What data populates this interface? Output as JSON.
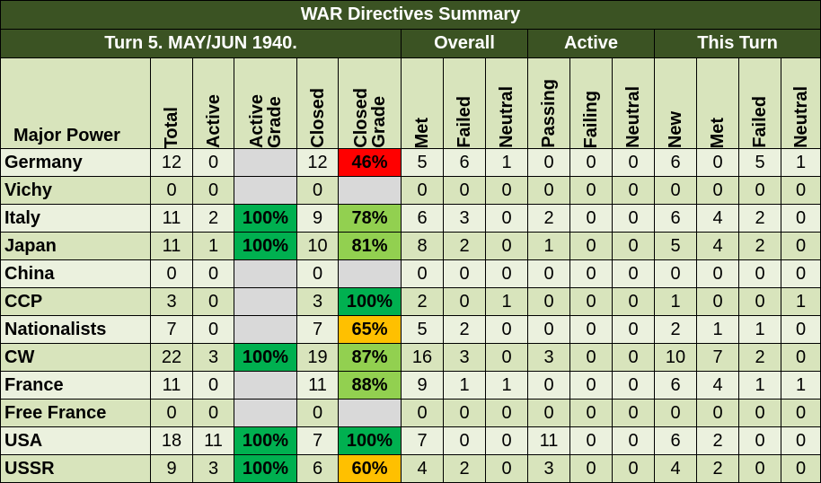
{
  "title": "WAR Directives Summary",
  "turn_label": "Turn 5.  MAY/JUN 1940.",
  "groups": {
    "overall": "Overall",
    "active": "Active",
    "this_turn": "This Turn"
  },
  "columns": {
    "major_power": "Major Power",
    "total": "Total",
    "active": "Active",
    "active_grade": "Active\nGrade",
    "closed": "Closed",
    "closed_grade": "Closed\nGrade",
    "met": "Met",
    "failed": "Failed",
    "neutral": "Neutral",
    "passing": "Passing",
    "failing": "Failing",
    "active_neutral": "Neutral",
    "new": "New",
    "turn_met": "Met",
    "turn_failed": "Failed",
    "turn_neutral": "Neutral"
  },
  "colors": {
    "header_green": "#3b5323",
    "red": "#ff0000",
    "green": "#00b050",
    "light_green": "#92d050",
    "orange": "#ffc000",
    "grey": "#d9d9d9"
  },
  "rows": [
    {
      "name": "Germany",
      "total": "12",
      "active": "0",
      "active_grade": "",
      "ag_color": "grey",
      "closed": "12",
      "closed_grade": "46%",
      "cg_color": "red",
      "met": "5",
      "failed": "6",
      "neutral": "1",
      "passing": "0",
      "failing": "0",
      "a_neutral": "0",
      "new": "6",
      "t_met": "0",
      "t_failed": "5",
      "t_neutral": "1"
    },
    {
      "name": "Vichy",
      "total": "0",
      "active": "0",
      "active_grade": "",
      "ag_color": "grey",
      "closed": "0",
      "closed_grade": "",
      "cg_color": "grey",
      "met": "0",
      "failed": "0",
      "neutral": "0",
      "passing": "0",
      "failing": "0",
      "a_neutral": "0",
      "new": "0",
      "t_met": "0",
      "t_failed": "0",
      "t_neutral": "0"
    },
    {
      "name": "Italy",
      "total": "11",
      "active": "2",
      "active_grade": "100%",
      "ag_color": "green",
      "closed": "9",
      "closed_grade": "78%",
      "cg_color": "lgreen",
      "met": "6",
      "failed": "3",
      "neutral": "0",
      "passing": "2",
      "failing": "0",
      "a_neutral": "0",
      "new": "6",
      "t_met": "4",
      "t_failed": "2",
      "t_neutral": "0"
    },
    {
      "name": "Japan",
      "total": "11",
      "active": "1",
      "active_grade": "100%",
      "ag_color": "green",
      "closed": "10",
      "closed_grade": "81%",
      "cg_color": "lgreen",
      "met": "8",
      "failed": "2",
      "neutral": "0",
      "passing": "1",
      "failing": "0",
      "a_neutral": "0",
      "new": "5",
      "t_met": "4",
      "t_failed": "2",
      "t_neutral": "0"
    },
    {
      "name": "China",
      "total": "0",
      "active": "0",
      "active_grade": "",
      "ag_color": "grey",
      "closed": "0",
      "closed_grade": "",
      "cg_color": "grey",
      "met": "0",
      "failed": "0",
      "neutral": "0",
      "passing": "0",
      "failing": "0",
      "a_neutral": "0",
      "new": "0",
      "t_met": "0",
      "t_failed": "0",
      "t_neutral": "0"
    },
    {
      "name": "CCP",
      "total": "3",
      "active": "0",
      "active_grade": "",
      "ag_color": "grey",
      "closed": "3",
      "closed_grade": "100%",
      "cg_color": "green",
      "met": "2",
      "failed": "0",
      "neutral": "1",
      "passing": "0",
      "failing": "0",
      "a_neutral": "0",
      "new": "1",
      "t_met": "0",
      "t_failed": "0",
      "t_neutral": "1"
    },
    {
      "name": "Nationalists",
      "total": "7",
      "active": "0",
      "active_grade": "",
      "ag_color": "grey",
      "closed": "7",
      "closed_grade": "65%",
      "cg_color": "orange",
      "met": "5",
      "failed": "2",
      "neutral": "0",
      "passing": "0",
      "failing": "0",
      "a_neutral": "0",
      "new": "2",
      "t_met": "1",
      "t_failed": "1",
      "t_neutral": "0"
    },
    {
      "name": "CW",
      "total": "22",
      "active": "3",
      "active_grade": "100%",
      "ag_color": "green",
      "closed": "19",
      "closed_grade": "87%",
      "cg_color": "lgreen",
      "met": "16",
      "failed": "3",
      "neutral": "0",
      "passing": "3",
      "failing": "0",
      "a_neutral": "0",
      "new": "10",
      "t_met": "7",
      "t_failed": "2",
      "t_neutral": "0"
    },
    {
      "name": "France",
      "total": "11",
      "active": "0",
      "active_grade": "",
      "ag_color": "grey",
      "closed": "11",
      "closed_grade": "88%",
      "cg_color": "lgreen",
      "met": "9",
      "failed": "1",
      "neutral": "1",
      "passing": "0",
      "failing": "0",
      "a_neutral": "0",
      "new": "6",
      "t_met": "4",
      "t_failed": "1",
      "t_neutral": "1"
    },
    {
      "name": "Free France",
      "total": "0",
      "active": "0",
      "active_grade": "",
      "ag_color": "grey",
      "closed": "0",
      "closed_grade": "",
      "cg_color": "grey",
      "met": "0",
      "failed": "0",
      "neutral": "0",
      "passing": "0",
      "failing": "0",
      "a_neutral": "0",
      "new": "0",
      "t_met": "0",
      "t_failed": "0",
      "t_neutral": "0"
    },
    {
      "name": "USA",
      "total": "18",
      "active": "11",
      "active_grade": "100%",
      "ag_color": "green",
      "closed": "7",
      "closed_grade": "100%",
      "cg_color": "green",
      "met": "7",
      "failed": "0",
      "neutral": "0",
      "passing": "11",
      "failing": "0",
      "a_neutral": "0",
      "new": "6",
      "t_met": "2",
      "t_failed": "0",
      "t_neutral": "0"
    },
    {
      "name": "USSR",
      "total": "9",
      "active": "3",
      "active_grade": "100%",
      "ag_color": "green",
      "closed": "6",
      "closed_grade": "60%",
      "cg_color": "orange",
      "met": "4",
      "failed": "2",
      "neutral": "0",
      "passing": "3",
      "failing": "0",
      "a_neutral": "0",
      "new": "4",
      "t_met": "2",
      "t_failed": "0",
      "t_neutral": "0"
    }
  ]
}
